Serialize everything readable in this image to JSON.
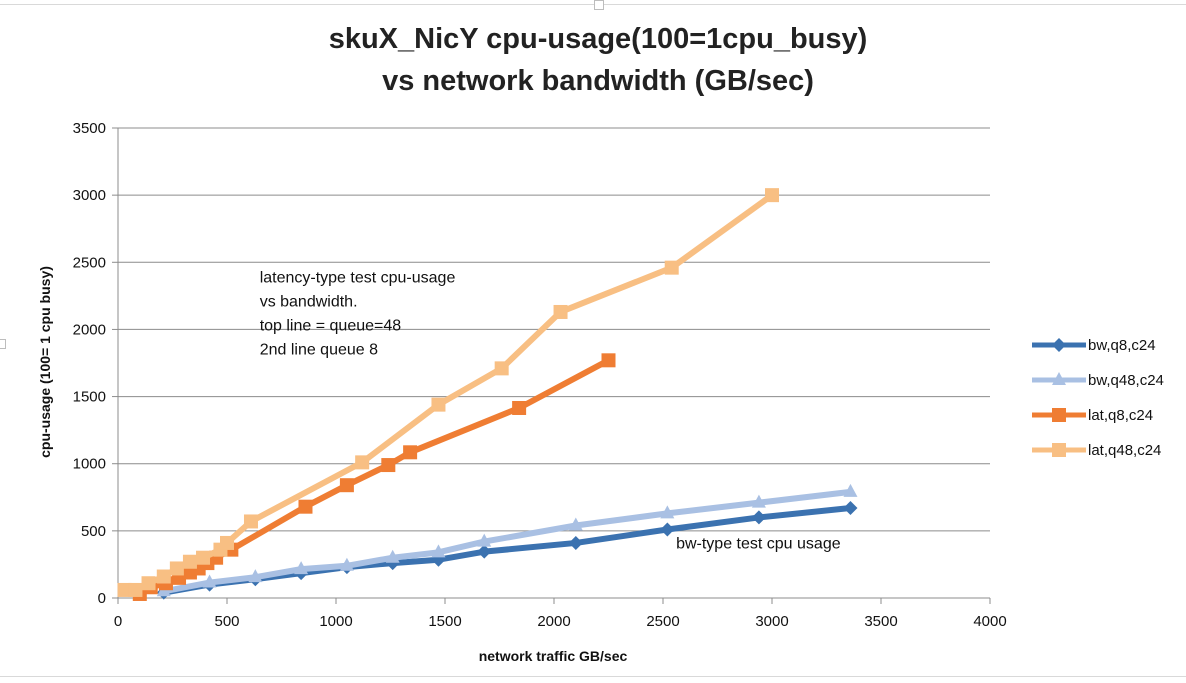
{
  "chart_data": {
    "type": "line",
    "title_lines": [
      "skuX_NicY cpu-usage(100=1cpu_busy)",
      "vs network bandwidth (GB/sec)"
    ],
    "xlabel": "network traffic GB/sec",
    "ylabel": "cpu-usage (100= 1 cpu busy)",
    "xlim": [
      0,
      4000
    ],
    "ylim": [
      0,
      3500
    ],
    "xticks": [
      0,
      500,
      1000,
      1500,
      2000,
      2500,
      3000,
      3500,
      4000
    ],
    "yticks": [
      0,
      500,
      1000,
      1500,
      2000,
      2500,
      3000,
      3500
    ],
    "grid": "horizontal",
    "legend_position": "right",
    "series": [
      {
        "name": "bw,q8,c24",
        "color": "#3b72b0",
        "marker": "diamond",
        "points": [
          [
            210,
            40
          ],
          [
            420,
            100
          ],
          [
            630,
            140
          ],
          [
            840,
            185
          ],
          [
            1050,
            230
          ],
          [
            1260,
            260
          ],
          [
            1470,
            285
          ],
          [
            1680,
            345
          ],
          [
            2100,
            410
          ],
          [
            2520,
            510
          ],
          [
            2940,
            600
          ],
          [
            3360,
            670
          ]
        ]
      },
      {
        "name": "bw,q48,c24",
        "color": "#a9c0e3",
        "marker": "triangle",
        "points": [
          [
            210,
            50
          ],
          [
            420,
            115
          ],
          [
            630,
            155
          ],
          [
            840,
            215
          ],
          [
            1050,
            240
          ],
          [
            1260,
            300
          ],
          [
            1470,
            340
          ],
          [
            1680,
            420
          ],
          [
            2100,
            540
          ],
          [
            2520,
            630
          ],
          [
            2940,
            710
          ],
          [
            3360,
            790
          ]
        ]
      },
      {
        "name": "lat,q8,c24",
        "color": "#ef7d33",
        "marker": "square",
        "points": [
          [
            100,
            30
          ],
          [
            150,
            80
          ],
          [
            220,
            110
          ],
          [
            280,
            150
          ],
          [
            330,
            190
          ],
          [
            370,
            220
          ],
          [
            410,
            260
          ],
          [
            450,
            300
          ],
          [
            520,
            360
          ],
          [
            860,
            680
          ],
          [
            1050,
            840
          ],
          [
            1240,
            990
          ],
          [
            1340,
            1085
          ],
          [
            1840,
            1415
          ],
          [
            2250,
            1770
          ]
        ]
      },
      {
        "name": "lat,q48,c24",
        "color": "#f8bf83",
        "marker": "square",
        "points": [
          [
            30,
            60
          ],
          [
            80,
            60
          ],
          [
            140,
            110
          ],
          [
            210,
            160
          ],
          [
            270,
            220
          ],
          [
            330,
            270
          ],
          [
            390,
            300
          ],
          [
            470,
            360
          ],
          [
            500,
            410
          ],
          [
            610,
            570
          ],
          [
            1120,
            1010
          ],
          [
            1470,
            1440
          ],
          [
            1760,
            1710
          ],
          [
            2030,
            2130
          ],
          [
            2540,
            2460
          ],
          [
            3000,
            3000
          ]
        ]
      }
    ],
    "annotations": [
      {
        "text_lines": [
          "latency-type test cpu-usage",
          "vs bandwidth.",
          "top line = queue=48",
          "2nd line queue 8"
        ],
        "x": 650,
        "y": 2350
      },
      {
        "text_lines": [
          "bw-type test cpu usage"
        ],
        "x": 2560,
        "y": 370
      }
    ]
  }
}
